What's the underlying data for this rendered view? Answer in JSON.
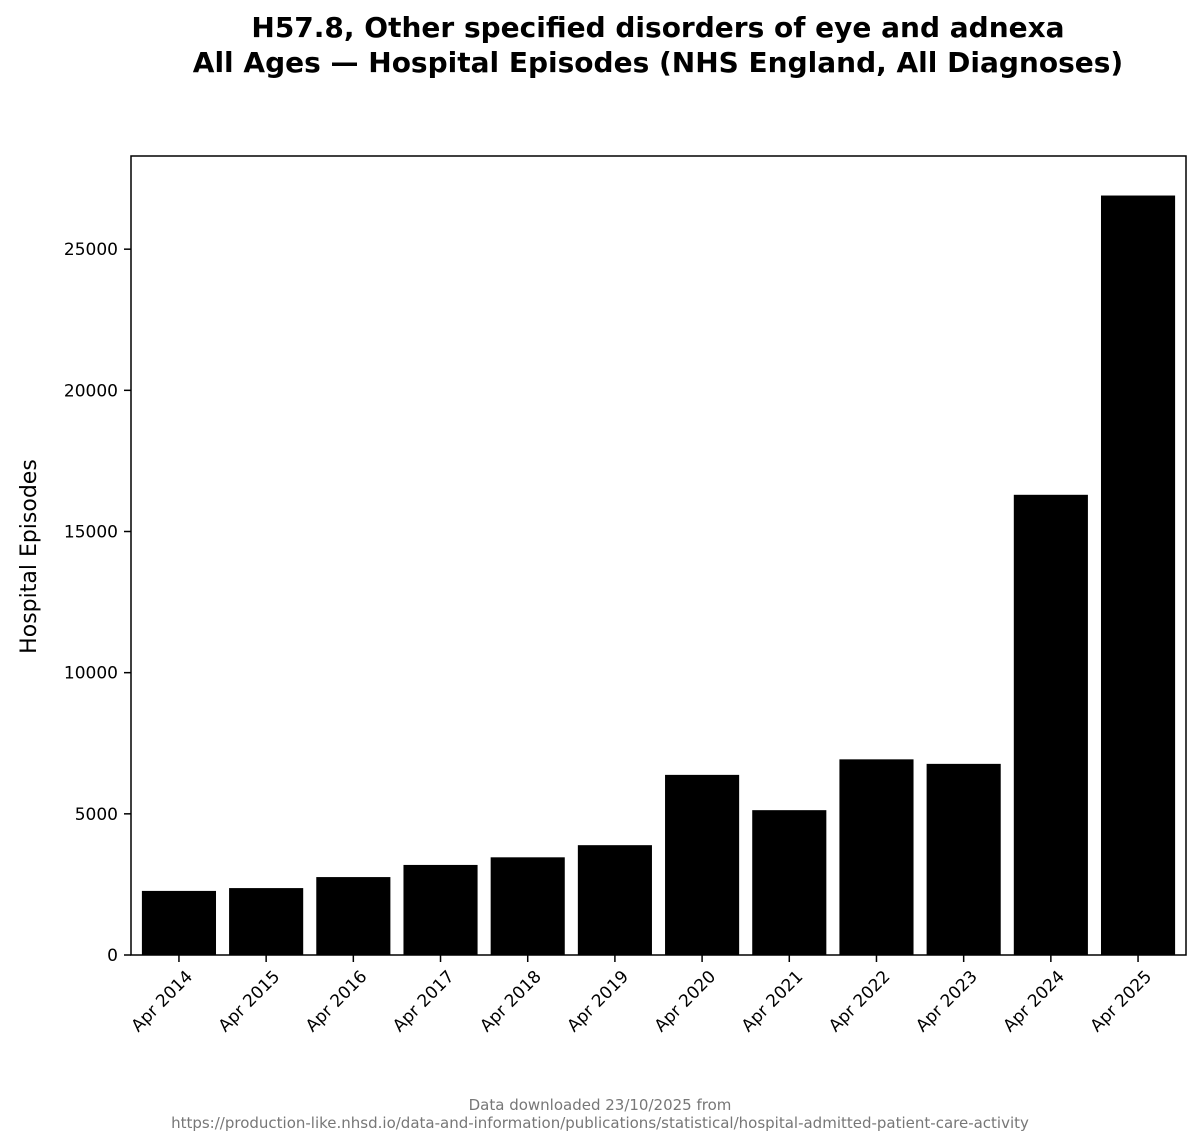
{
  "chart_data": {
    "type": "bar",
    "title_lines": [
      "H57.8, Other specified disorders of eye and adnexa",
      "All Ages — Hospital Episodes (NHS England, All Diagnoses)"
    ],
    "ylabel": "Hospital Episodes",
    "xlabel": "",
    "categories": [
      "Apr 2014",
      "Apr 2015",
      "Apr 2016",
      "Apr 2017",
      "Apr 2018",
      "Apr 2019",
      "Apr 2020",
      "Apr 2021",
      "Apr 2022",
      "Apr 2023",
      "Apr 2024",
      "Apr 2025"
    ],
    "values": [
      2270,
      2370,
      2760,
      3190,
      3460,
      3890,
      6380,
      5130,
      6930,
      6770,
      16300,
      26900
    ],
    "ylim": [
      0,
      28300
    ],
    "yticks": [
      0,
      5000,
      10000,
      15000,
      20000,
      25000
    ],
    "bar_color": "#000000",
    "grid": false
  },
  "source_note": {
    "line1": "Data downloaded 23/10/2025 from",
    "line2": "https://production-like.nhsd.io/data-and-information/publications/statistical/hospital-admitted-patient-care-activity"
  }
}
